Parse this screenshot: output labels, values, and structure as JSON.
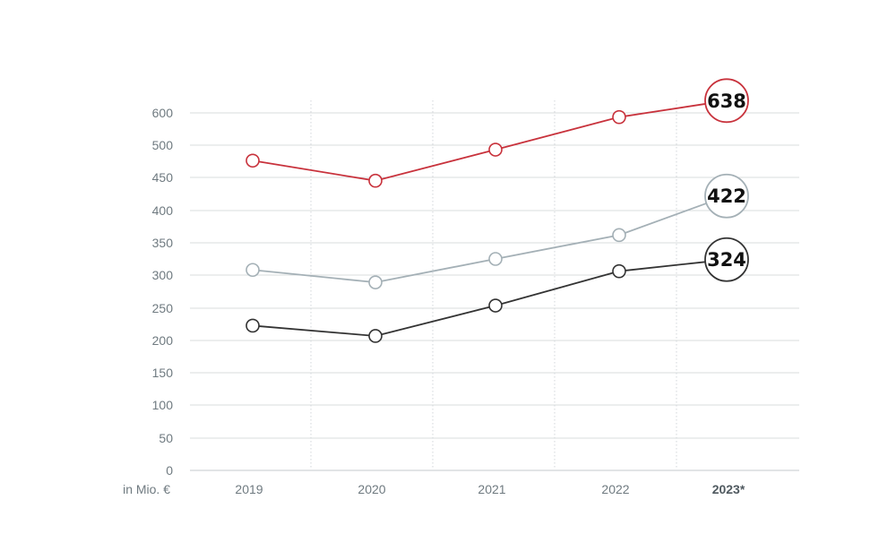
{
  "chart_data": {
    "type": "line",
    "unit_label": "in Mio. €",
    "categories": [
      "2019",
      "2020",
      "2021",
      "2022",
      "2023*"
    ],
    "highlight_category": "2023*",
    "y_ticks": [
      0,
      50,
      100,
      150,
      200,
      250,
      300,
      350,
      400,
      450,
      500,
      600
    ],
    "grid": true,
    "series": [
      {
        "key": "red",
        "color": "#c8323c",
        "values": [
          476,
          445,
          493,
          587,
          638
        ],
        "end_label": "638"
      },
      {
        "key": "grey",
        "color": "#a4b0b6",
        "values": [
          308,
          289,
          325,
          362,
          422
        ],
        "end_label": "422"
      },
      {
        "key": "black",
        "color": "#333333",
        "values": [
          223,
          207,
          254,
          306,
          324
        ],
        "end_label": "324"
      }
    ]
  }
}
